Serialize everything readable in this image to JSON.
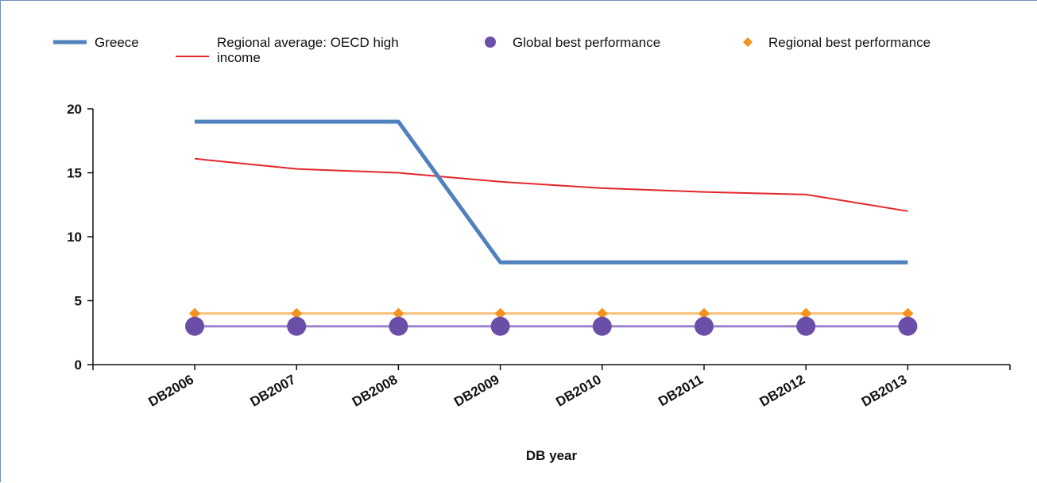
{
  "chart_data": {
    "type": "line",
    "xlabel": "DB year",
    "ylabel": "",
    "ylim": [
      0,
      20
    ],
    "yticks": [
      0,
      5,
      10,
      15,
      20
    ],
    "categories": [
      "DB2006",
      "DB2007",
      "DB2008",
      "DB2009",
      "DB2010",
      "DB2011",
      "DB2012",
      "DB2013"
    ],
    "legend_position": "top",
    "series": [
      {
        "name": "Greece",
        "color": "#4f81bd",
        "marker": "none",
        "values": [
          19,
          19,
          19,
          8,
          8,
          8,
          8,
          8
        ]
      },
      {
        "name": "Regional average: OECD high income",
        "color": "#e3262b",
        "marker": "none",
        "values": [
          16.1,
          15.3,
          15.0,
          14.3,
          13.8,
          13.5,
          13.3,
          12.0
        ]
      },
      {
        "name": "Global best performance",
        "color": "#6a4ea8",
        "line_color": "#9b86cf",
        "marker": "circle",
        "values": [
          3,
          3,
          3,
          3,
          3,
          3,
          3,
          3
        ]
      },
      {
        "name": "Regional best performance",
        "color": "#f5921e",
        "line_color": "#fbc07a",
        "marker": "diamond",
        "values": [
          4,
          4,
          4,
          4,
          4,
          4,
          4,
          4
        ]
      }
    ]
  }
}
